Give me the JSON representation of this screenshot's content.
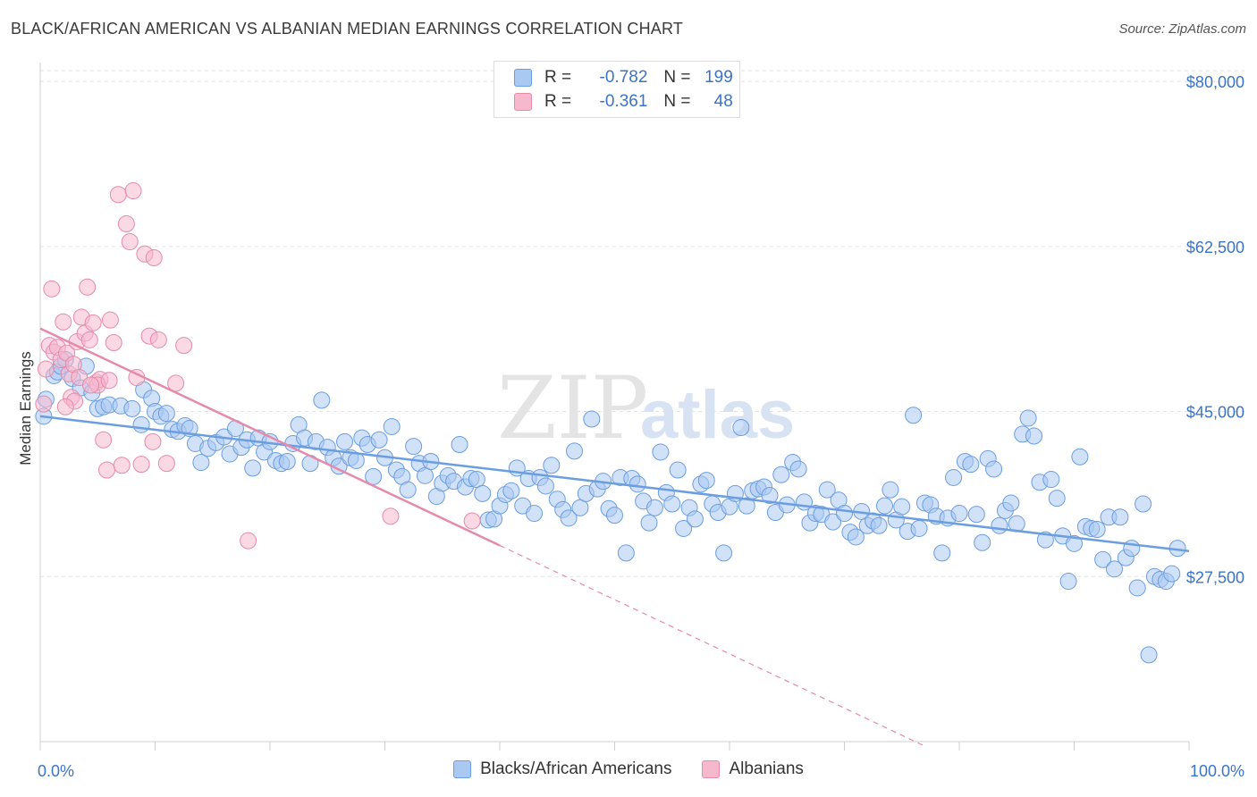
{
  "title": "BLACK/AFRICAN AMERICAN VS ALBANIAN MEDIAN EARNINGS CORRELATION CHART",
  "source": "Source: ZipAtlas.com",
  "watermark": {
    "zip": "ZIP",
    "atlas": "atlas"
  },
  "stats": [
    {
      "r_label": "R =",
      "r_value": "-0.782",
      "n_label": "N =",
      "n_value": "199",
      "color": "#a9c8f2",
      "border": "#6b9ee0"
    },
    {
      "r_label": "R =",
      "r_value": "-0.361",
      "n_label": "N =",
      "n_value": "48",
      "color": "#f6b8cd",
      "border": "#e58aab"
    }
  ],
  "chart_data": {
    "type": "scatter",
    "ylabel": "Median Earnings",
    "x_tick_labels": [
      "0.0%",
      "100.0%"
    ],
    "y_tick_labels": [
      "$27,500",
      "$45,000",
      "$62,500",
      "$80,000"
    ],
    "y_ticks": [
      27500,
      45000,
      62500,
      80000
    ],
    "xlim": [
      0,
      100
    ],
    "ylim": [
      10000,
      82000
    ],
    "grid": true,
    "legend_position": "bottom",
    "series": [
      {
        "name": "Blacks/African Americans",
        "color": "#6b9ee0",
        "fill": "#a9c8f2",
        "trend": {
          "x0": 0,
          "y0": 44500,
          "x1": 100,
          "y1": 30200,
          "solid_to": 100
        },
        "points": [
          [
            0.3,
            44500
          ],
          [
            0.5,
            46300
          ],
          [
            1.2,
            48800
          ],
          [
            1.5,
            49200
          ],
          [
            1.8,
            49800
          ],
          [
            2.2,
            50500
          ],
          [
            2.8,
            48500
          ],
          [
            3.5,
            47500
          ],
          [
            4,
            49800
          ],
          [
            4.5,
            47000
          ],
          [
            5,
            45300
          ],
          [
            5.5,
            45500
          ],
          [
            6,
            45700
          ],
          [
            7,
            45600
          ],
          [
            8,
            45300
          ],
          [
            8.8,
            43600
          ],
          [
            9,
            47300
          ],
          [
            9.7,
            46400
          ],
          [
            10,
            45000
          ],
          [
            10.5,
            44500
          ],
          [
            11,
            44800
          ],
          [
            11.5,
            43100
          ],
          [
            12,
            42900
          ],
          [
            12.6,
            43500
          ],
          [
            13,
            43200
          ],
          [
            13.5,
            41600
          ],
          [
            14,
            39600
          ],
          [
            14.6,
            41100
          ],
          [
            15.3,
            41700
          ],
          [
            16,
            42300
          ],
          [
            16.5,
            40500
          ],
          [
            17,
            43200
          ],
          [
            17.5,
            41200
          ],
          [
            18,
            42000
          ],
          [
            18.5,
            39000
          ],
          [
            19,
            42200
          ],
          [
            19.5,
            40700
          ],
          [
            20,
            41800
          ],
          [
            20.5,
            39800
          ],
          [
            21,
            39500
          ],
          [
            21.5,
            39700
          ],
          [
            22,
            41600
          ],
          [
            22.5,
            43600
          ],
          [
            23,
            42200
          ],
          [
            23.5,
            39500
          ],
          [
            24,
            41800
          ],
          [
            24.5,
            46200
          ],
          [
            25,
            41200
          ],
          [
            25.5,
            40100
          ],
          [
            26,
            39200
          ],
          [
            26.5,
            41800
          ],
          [
            27,
            40100
          ],
          [
            27.5,
            39800
          ],
          [
            28,
            42200
          ],
          [
            28.5,
            41500
          ],
          [
            29,
            38100
          ],
          [
            29.5,
            42000
          ],
          [
            30,
            40100
          ],
          [
            30.6,
            43400
          ],
          [
            31,
            38800
          ],
          [
            31.5,
            38100
          ],
          [
            32,
            36700
          ],
          [
            32.5,
            41300
          ],
          [
            33,
            39500
          ],
          [
            33.5,
            38200
          ],
          [
            34,
            39700
          ],
          [
            34.5,
            36000
          ],
          [
            35,
            37400
          ],
          [
            35.5,
            38200
          ],
          [
            36,
            37600
          ],
          [
            36.5,
            41500
          ],
          [
            37,
            37000
          ],
          [
            37.5,
            37900
          ],
          [
            38,
            37800
          ],
          [
            38.5,
            36300
          ],
          [
            39,
            33500
          ],
          [
            39.5,
            33600
          ],
          [
            40,
            35000
          ],
          [
            40.5,
            36200
          ],
          [
            41,
            36600
          ],
          [
            41.5,
            39000
          ],
          [
            42,
            35000
          ],
          [
            42.5,
            37900
          ],
          [
            43,
            34200
          ],
          [
            43.5,
            38000
          ],
          [
            44,
            37100
          ],
          [
            44.5,
            39300
          ],
          [
            45,
            35700
          ],
          [
            45.5,
            34600
          ],
          [
            46,
            33700
          ],
          [
            46.5,
            40800
          ],
          [
            47,
            34800
          ],
          [
            47.5,
            36300
          ],
          [
            48,
            44200
          ],
          [
            48.5,
            36800
          ],
          [
            49,
            37600
          ],
          [
            49.5,
            34700
          ],
          [
            50,
            34000
          ],
          [
            50.5,
            38000
          ],
          [
            51,
            30000
          ],
          [
            51.5,
            37900
          ],
          [
            52,
            37300
          ],
          [
            52.5,
            35500
          ],
          [
            53,
            33200
          ],
          [
            53.5,
            34800
          ],
          [
            54,
            40700
          ],
          [
            54.5,
            36400
          ],
          [
            55,
            35200
          ],
          [
            55.5,
            38800
          ],
          [
            56,
            32600
          ],
          [
            56.5,
            34800
          ],
          [
            57,
            33600
          ],
          [
            57.5,
            37300
          ],
          [
            58,
            37700
          ],
          [
            58.5,
            35200
          ],
          [
            59,
            34300
          ],
          [
            59.5,
            30000
          ],
          [
            60,
            34900
          ],
          [
            60.5,
            36300
          ],
          [
            61,
            43300
          ],
          [
            61.5,
            35000
          ],
          [
            62,
            36600
          ],
          [
            62.5,
            36800
          ],
          [
            63,
            37000
          ],
          [
            63.5,
            36100
          ],
          [
            64,
            34300
          ],
          [
            64.5,
            38300
          ],
          [
            65,
            35100
          ],
          [
            65.5,
            39600
          ],
          [
            66,
            38900
          ],
          [
            66.5,
            35400
          ],
          [
            67,
            33200
          ],
          [
            67.5,
            34200
          ],
          [
            68,
            34100
          ],
          [
            68.5,
            36700
          ],
          [
            69,
            33300
          ],
          [
            69.5,
            35600
          ],
          [
            70,
            34200
          ],
          [
            70.5,
            32200
          ],
          [
            71,
            31700
          ],
          [
            71.5,
            34400
          ],
          [
            72,
            32900
          ],
          [
            72.5,
            33400
          ],
          [
            73,
            32900
          ],
          [
            73.5,
            35000
          ],
          [
            74,
            36700
          ],
          [
            74.5,
            33500
          ],
          [
            75,
            34900
          ],
          [
            75.5,
            32300
          ],
          [
            76,
            44600
          ],
          [
            76.5,
            32600
          ],
          [
            77,
            35300
          ],
          [
            77.5,
            35100
          ],
          [
            78,
            33900
          ],
          [
            78.5,
            30000
          ],
          [
            79,
            33700
          ],
          [
            79.5,
            38000
          ],
          [
            80,
            34200
          ],
          [
            80.5,
            39700
          ],
          [
            81,
            39400
          ],
          [
            81.5,
            34100
          ],
          [
            82,
            31100
          ],
          [
            82.5,
            40000
          ],
          [
            83,
            38900
          ],
          [
            83.5,
            32900
          ],
          [
            84,
            34500
          ],
          [
            84.5,
            35300
          ],
          [
            85,
            33100
          ],
          [
            85.5,
            42600
          ],
          [
            86,
            44300
          ],
          [
            86.5,
            42400
          ],
          [
            87,
            37500
          ],
          [
            87.5,
            31400
          ],
          [
            88,
            37800
          ],
          [
            88.5,
            35800
          ],
          [
            89,
            31800
          ],
          [
            89.5,
            27000
          ],
          [
            90,
            31000
          ],
          [
            90.5,
            40200
          ],
          [
            91,
            32800
          ],
          [
            91.5,
            32600
          ],
          [
            92,
            32500
          ],
          [
            92.5,
            29300
          ],
          [
            93,
            33800
          ],
          [
            93.5,
            28300
          ],
          [
            94,
            33800
          ],
          [
            94.5,
            29500
          ],
          [
            95,
            30500
          ],
          [
            95.5,
            26300
          ],
          [
            96,
            35200
          ],
          [
            96.5,
            19200
          ],
          [
            97,
            27500
          ],
          [
            97.5,
            27200
          ],
          [
            98,
            27000
          ],
          [
            98.5,
            27800
          ],
          [
            99,
            30500
          ]
        ]
      },
      {
        "name": "Albanians",
        "color": "#e58aab",
        "fill": "#f6b8cd",
        "trend": {
          "x0": 0,
          "y0": 53800,
          "x1": 40,
          "y1": 30800,
          "solid_to": 40,
          "dash_to": 77
        },
        "points": [
          [
            0.3,
            45800
          ],
          [
            0.5,
            49500
          ],
          [
            0.8,
            52000
          ],
          [
            1,
            58000
          ],
          [
            1.2,
            51300
          ],
          [
            1.5,
            51800
          ],
          [
            1.8,
            50500
          ],
          [
            2,
            54500
          ],
          [
            2.3,
            51200
          ],
          [
            2.5,
            49000
          ],
          [
            2.7,
            46500
          ],
          [
            2.9,
            50000
          ],
          [
            3.2,
            52400
          ],
          [
            3.4,
            48600
          ],
          [
            3.6,
            55000
          ],
          [
            3.9,
            53300
          ],
          [
            4.1,
            58200
          ],
          [
            4.3,
            52600
          ],
          [
            4.6,
            54400
          ],
          [
            4.9,
            48100
          ],
          [
            5.2,
            48400
          ],
          [
            5.5,
            42000
          ],
          [
            5.8,
            38800
          ],
          [
            6.1,
            54700
          ],
          [
            6.4,
            52300
          ],
          [
            6.8,
            68000
          ],
          [
            7.1,
            39300
          ],
          [
            7.5,
            64900
          ],
          [
            7.8,
            63000
          ],
          [
            8.1,
            68400
          ],
          [
            8.4,
            48600
          ],
          [
            8.8,
            39400
          ],
          [
            9.1,
            61700
          ],
          [
            9.5,
            53000
          ],
          [
            9.9,
            61300
          ],
          [
            10.3,
            52600
          ],
          [
            11,
            39500
          ],
          [
            11.8,
            48000
          ],
          [
            12.5,
            52000
          ],
          [
            5,
            47800
          ],
          [
            4.4,
            47800
          ],
          [
            3,
            46100
          ],
          [
            2.2,
            45500
          ],
          [
            6,
            48300
          ],
          [
            9.8,
            41800
          ],
          [
            18.1,
            31300
          ],
          [
            30.5,
            33900
          ],
          [
            37.6,
            33400
          ]
        ]
      }
    ]
  }
}
